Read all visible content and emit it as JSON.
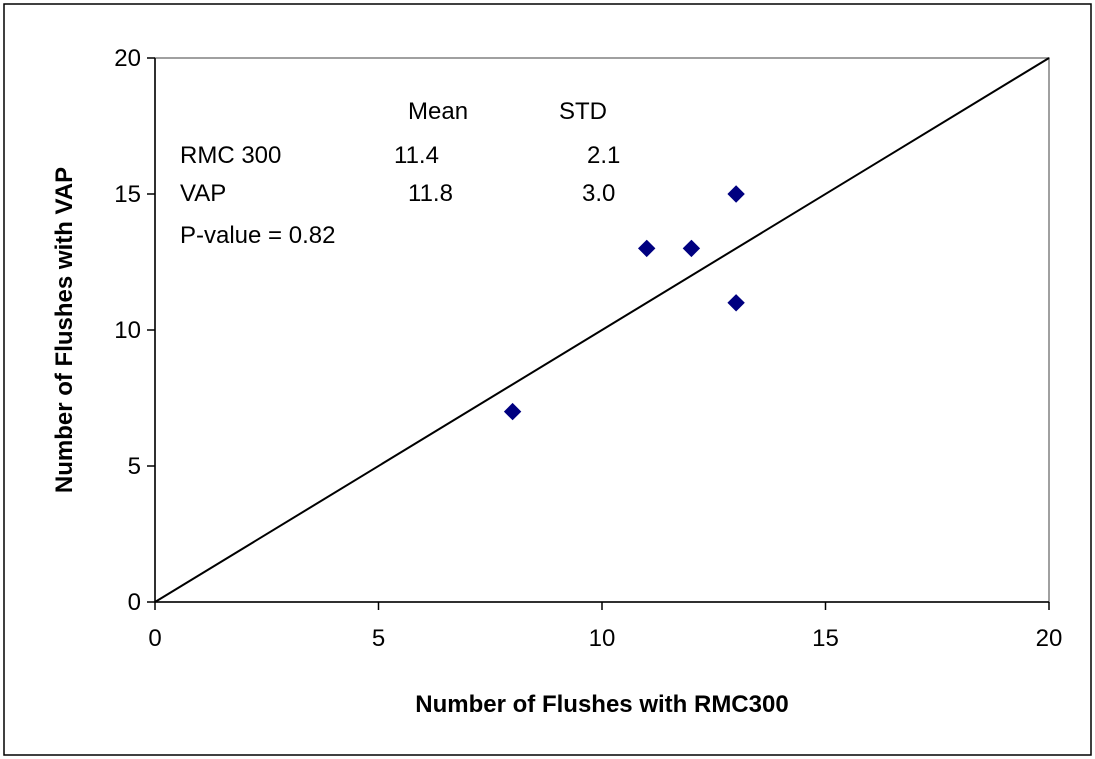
{
  "chart_data": {
    "type": "scatter",
    "title": "",
    "xlabel": "Number of Flushes with RMC300",
    "ylabel": "Number of Flushes with VAP",
    "xlim": [
      0,
      20
    ],
    "ylim": [
      0,
      20
    ],
    "x_ticks": [
      0,
      5,
      10,
      15,
      20
    ],
    "y_ticks": [
      0,
      5,
      10,
      15,
      20
    ],
    "grid": false,
    "legend": "none",
    "marker_color": "#000080",
    "series": [
      {
        "x": [
          8,
          11,
          12,
          13,
          13
        ],
        "y": [
          7,
          13,
          13,
          15,
          11
        ]
      }
    ],
    "reference_line": {
      "x": [
        0,
        20
      ],
      "y": [
        0,
        20
      ],
      "color": "#000000"
    },
    "annotation": {
      "header_mean": "Mean",
      "header_std": "STD",
      "rows": [
        {
          "label": "RMC 300",
          "mean": "11.4",
          "std": "2.1"
        },
        {
          "label": "VAP",
          "mean": "11.8",
          "std": "3.0"
        }
      ],
      "pvalue": "P-value = 0.82"
    }
  }
}
